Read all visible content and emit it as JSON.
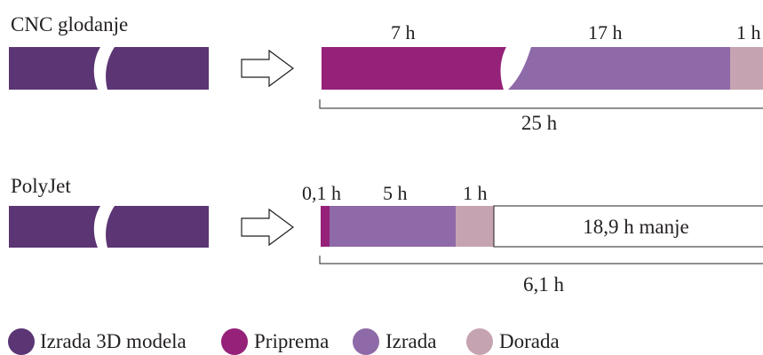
{
  "colors": {
    "model": "#5b3574",
    "priprema": "#952179",
    "izrada": "#8e6aa8",
    "dorada": "#c6a3b1",
    "line": "#231f20",
    "white": "#ffffff"
  },
  "processes": {
    "cnc": {
      "title": "CNC glodanje",
      "arrow_icon": "arrow-right-outline-icon",
      "segments": {
        "priprema": {
          "label": "7 h",
          "value": 7
        },
        "izrada": {
          "label": "17 h",
          "value": 17
        },
        "dorada": {
          "label": "1 h",
          "value": 1
        }
      },
      "total_label": "25 h",
      "total_value": 25
    },
    "polyjet": {
      "title": "PolyJet",
      "arrow_icon": "arrow-right-outline-icon",
      "segments": {
        "priprema": {
          "label": "0,1 h",
          "value": 0.1
        },
        "izrada": {
          "label": "5 h",
          "value": 5
        },
        "dorada": {
          "label": "1 h",
          "value": 1
        }
      },
      "saved_label": "18,9 h manje",
      "saved_value": 18.9,
      "total_label": "6,1 h",
      "total_value": 6.1
    }
  },
  "legend": {
    "model": {
      "label": "Izrada 3D modela",
      "color": "#5b3574"
    },
    "priprema": {
      "label": "Priprema",
      "color": "#952179"
    },
    "izrada": {
      "label": "Izrada",
      "color": "#8e6aa8"
    },
    "dorada": {
      "label": "Dorada",
      "color": "#c6a3b1"
    }
  }
}
